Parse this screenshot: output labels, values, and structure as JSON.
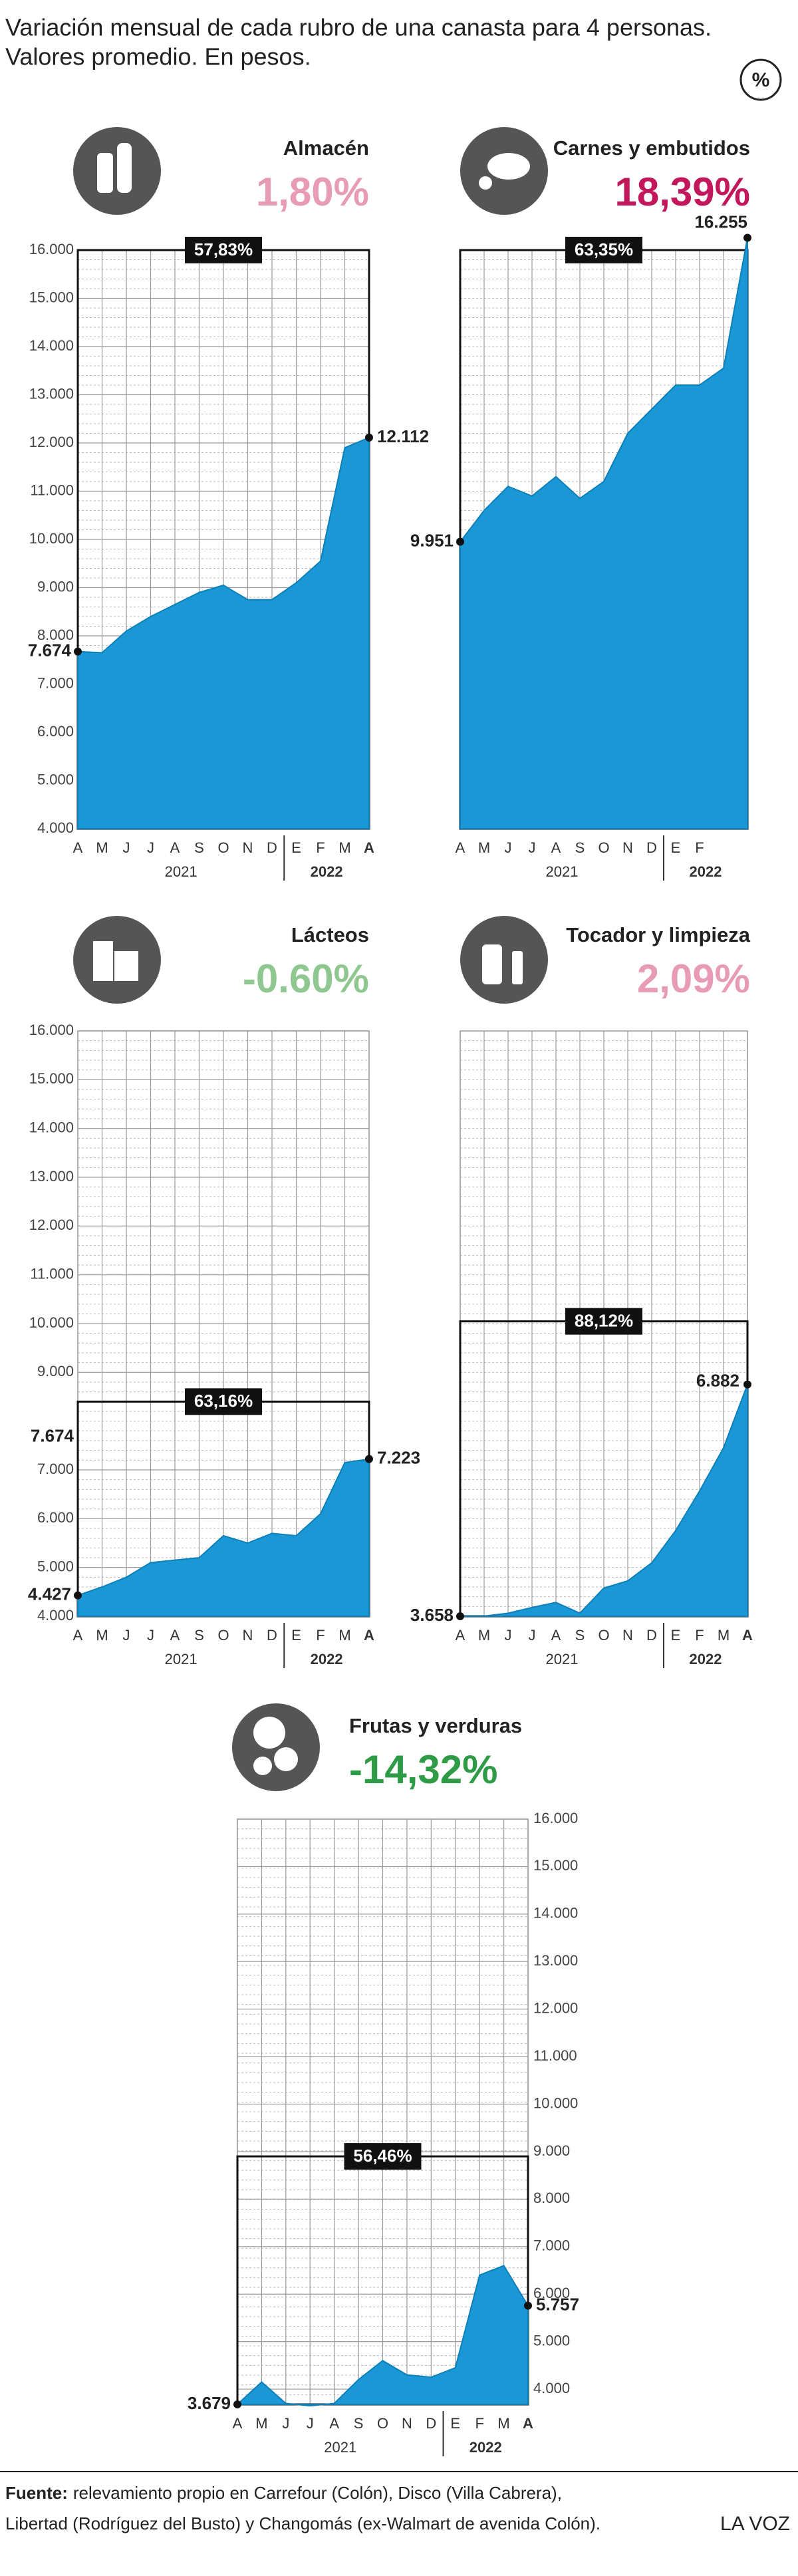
{
  "title": [
    "Variación mensual de cada rubro de una canasta para 4 personas.",
    "Valores promedio. En pesos."
  ],
  "badge": "%",
  "source_label": "Fuente:",
  "source": [
    "relevamiento propio en Carrefour (Colón), Disco (Villa Cabrera),",
    "Libertad (Rodríguez del Busto) y Changomás (ex-Walmart de avenida Colón)."
  ],
  "brand": "LA VOZ",
  "chart_data": [
    {
      "type": "area",
      "title": "Almacén",
      "change": "1,80%",
      "change_color": "#e79bb7",
      "color": "#1a98d6",
      "categories": [
        "A",
        "M",
        "J",
        "J",
        "A",
        "S",
        "O",
        "N",
        "D",
        "E",
        "F",
        "M",
        "A"
      ],
      "years": [
        "2021",
        "2022"
      ],
      "values": [
        7674,
        7650,
        8100,
        8400,
        8650,
        8900,
        9050,
        8750,
        8750,
        9100,
        9550,
        11900,
        12112
      ],
      "value_labels": [
        "7.674",
        null,
        null,
        null,
        null,
        null,
        null,
        null,
        null,
        null,
        null,
        null,
        "12.112"
      ],
      "ylim": [
        4000,
        16000
      ],
      "yticks": [
        {
          "value": 4000,
          "label": "4.000"
        },
        {
          "value": 5000,
          "label": "5.000"
        },
        {
          "value": 6000,
          "label": "6.000"
        },
        {
          "value": 7000,
          "label": "7.000"
        },
        {
          "value": 8000,
          "label": "8.000"
        },
        {
          "value": 9000,
          "label": "9.000"
        },
        {
          "value": 10000,
          "label": "10.000"
        },
        {
          "value": 11000,
          "label": "11.000"
        },
        {
          "value": 12000,
          "label": "12.000"
        },
        {
          "value": 13000,
          "label": "13.000"
        },
        {
          "value": 14000,
          "label": "14.000"
        },
        {
          "value": 15000,
          "label": "15.000"
        },
        {
          "value": 16000,
          "label": "16.000"
        }
      ],
      "box": {
        "value": 16000,
        "label": "57,83%"
      }
    },
    {
      "type": "area",
      "title": "Carnes y embutidos",
      "change": "18,39%",
      "change_color": "#c2185b",
      "color": "#1a98d6",
      "categories": [
        "A",
        "M",
        "J",
        "J",
        "A",
        "S",
        "O",
        "N",
        "D",
        "E",
        "F",
        null,
        null
      ],
      "years": [
        "2021",
        "2022"
      ],
      "values": [
        9951,
        10600,
        11100,
        10900,
        11300,
        10850,
        11200,
        12200,
        12700,
        13200,
        13200,
        13550,
        16255
      ],
      "value_labels": [
        "9.951",
        null,
        null,
        null,
        null,
        null,
        null,
        null,
        null,
        null,
        null,
        null,
        "16.255"
      ],
      "ylim": [
        4000,
        16000
      ],
      "box": {
        "value": 16000,
        "label": "63,35%"
      }
    },
    {
      "type": "area",
      "title": "Lácteos",
      "change": "-0.60%",
      "change_color": "#8ec78f",
      "color": "#1a98d6",
      "categories": [
        "A",
        "M",
        "J",
        "J",
        "A",
        "S",
        "O",
        "N",
        "D",
        "E",
        "F",
        "M",
        "A"
      ],
      "years": [
        "2021",
        "2022"
      ],
      "values": [
        4427,
        4600,
        4800,
        5100,
        5150,
        5200,
        5650,
        5500,
        5700,
        5650,
        6100,
        7150,
        7223
      ],
      "value_labels": [
        "4.427",
        null,
        null,
        null,
        null,
        null,
        null,
        null,
        null,
        null,
        null,
        null,
        "7.223"
      ],
      "ylim": [
        4000,
        16000
      ],
      "yticks": [
        {
          "value": 4000,
          "label": "4.000"
        },
        {
          "value": 5000,
          "label": "5.000"
        },
        {
          "value": 6000,
          "label": "6.000"
        },
        {
          "value": 7000,
          "label": "7.000"
        },
        {
          "value": 9000,
          "label": "9.000"
        },
        {
          "value": 10000,
          "label": "10.000"
        },
        {
          "value": 11000,
          "label": "11.000"
        },
        {
          "value": 12000,
          "label": "12.000"
        },
        {
          "value": 13000,
          "label": "13.000"
        },
        {
          "value": 14000,
          "label": "14.000"
        },
        {
          "value": 15000,
          "label": "15.000"
        },
        {
          "value": 16000,
          "label": "16.000"
        }
      ],
      "axis_label": {
        "value": 7674,
        "label": "7.674"
      },
      "box": {
        "value": 8400,
        "label": "63,16%"
      }
    },
    {
      "type": "area",
      "title": "Tocador y limpieza",
      "change": "2,09%",
      "change_color": "#e79bb7",
      "color": "#1a98d6",
      "categories": [
        "A",
        "M",
        "J",
        "J",
        "A",
        "S",
        "O",
        "N",
        "D",
        "E",
        "F",
        "M",
        "A"
      ],
      "years": [
        "2021",
        "2022"
      ],
      "values": [
        3658,
        3660,
        3700,
        3780,
        3850,
        3700,
        4050,
        4150,
        4400,
        4850,
        5400,
        6000,
        6882
      ],
      "value_labels": [
        "3.658",
        null,
        null,
        null,
        null,
        null,
        null,
        null,
        null,
        null,
        null,
        null,
        "6.882"
      ],
      "ylim": [
        3658,
        11800
      ],
      "box": {
        "value": 7760,
        "label": "88,12%"
      }
    },
    {
      "type": "area",
      "title": "Frutas y verduras",
      "change": "-14,32%",
      "change_color": "#2e9b47",
      "color": "#1a98d6",
      "categories": [
        "A",
        "M",
        "J",
        "J",
        "A",
        "S",
        "O",
        "N",
        "D",
        "E",
        "F",
        "M",
        "A"
      ],
      "years": [
        "2021",
        "2022"
      ],
      "values": [
        3679,
        4150,
        3700,
        3650,
        3700,
        4200,
        4600,
        4300,
        4250,
        4450,
        6400,
        6600,
        5757
      ],
      "value_labels": [
        "3.679",
        null,
        null,
        null,
        null,
        null,
        null,
        null,
        null,
        null,
        null,
        null,
        "5.757"
      ],
      "ylim": [
        3679,
        16000
      ],
      "yticks": [
        {
          "value": 4000,
          "label": "4.000"
        },
        {
          "value": 5000,
          "label": "5.000"
        },
        {
          "value": 6000,
          "label": "6.000"
        },
        {
          "value": 7000,
          "label": "7.000"
        },
        {
          "value": 8000,
          "label": "8.000"
        },
        {
          "value": 9000,
          "label": "9.000"
        },
        {
          "value": 10000,
          "label": "10.000"
        },
        {
          "value": 11000,
          "label": "11.000"
        },
        {
          "value": 12000,
          "label": "12.000"
        },
        {
          "value": 13000,
          "label": "13.000"
        },
        {
          "value": 14000,
          "label": "14.000"
        },
        {
          "value": 15000,
          "label": "15.000"
        },
        {
          "value": 16000,
          "label": "16.000"
        }
      ],
      "box": {
        "value": 8900,
        "label": "56,46%"
      }
    }
  ]
}
